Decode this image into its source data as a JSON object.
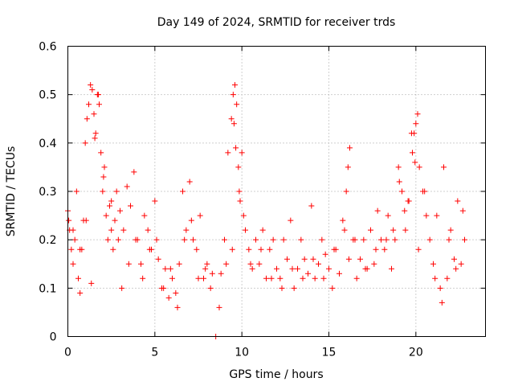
{
  "chart_data": {
    "type": "scatter",
    "title": "Day 149 of 2024, SRMTID for receiver trds",
    "xlabel": "GPS time / hours",
    "ylabel": "SRMTID / TECUs",
    "xlim": [
      0,
      24
    ],
    "ylim": [
      0,
      0.6
    ],
    "xticks": [
      0,
      5,
      10,
      15,
      20
    ],
    "xtick_labels": [
      "0",
      "5",
      "10",
      "15",
      "20"
    ],
    "yticks": [
      0,
      0.1,
      0.2,
      0.3,
      0.4,
      0.5,
      0.6
    ],
    "ytick_labels": [
      "0",
      "0.1",
      "0.2",
      "0.3",
      "0.4",
      "0.5",
      "0.6"
    ],
    "grid": true,
    "marker": "+",
    "color": "#ff0000",
    "series": [
      {
        "name": "SRMTID",
        "x": [
          0.0,
          0.1,
          0.2,
          0.3,
          0.4,
          0.5,
          0.6,
          0.7,
          0.8,
          0.9,
          1.0,
          1.1,
          1.2,
          1.3,
          1.4,
          1.5,
          1.6,
          1.7,
          1.8,
          1.9,
          2.0,
          2.1,
          2.2,
          2.3,
          2.4,
          2.5,
          2.6,
          2.7,
          2.8,
          2.9,
          3.0,
          3.2,
          3.4,
          3.6,
          3.8,
          4.0,
          4.2,
          4.4,
          4.6,
          4.8,
          5.0,
          5.2,
          5.4,
          5.6,
          5.8,
          6.0,
          6.2,
          6.4,
          6.6,
          6.8,
          7.0,
          7.2,
          7.4,
          7.6,
          7.8,
          8.0,
          8.2,
          8.5,
          8.8,
          9.0,
          9.2,
          9.4,
          9.5,
          9.6,
          9.7,
          9.8,
          9.9,
          10.0,
          10.2,
          10.4,
          10.6,
          10.8,
          11.0,
          11.2,
          11.4,
          11.6,
          11.8,
          12.0,
          12.2,
          12.4,
          12.6,
          12.8,
          13.0,
          13.2,
          13.4,
          13.6,
          13.8,
          14.0,
          14.2,
          14.4,
          14.6,
          14.8,
          15.0,
          15.2,
          15.4,
          15.6,
          15.8,
          16.0,
          16.1,
          16.2,
          16.4,
          16.6,
          16.8,
          17.0,
          17.2,
          17.4,
          17.6,
          17.8,
          18.0,
          18.2,
          18.4,
          18.6,
          18.8,
          19.0,
          19.2,
          19.4,
          19.6,
          19.8,
          19.9,
          20.0,
          20.1,
          20.2,
          20.4,
          20.6,
          20.8,
          21.0,
          21.2,
          21.4,
          21.6,
          21.8,
          22.0,
          22.2,
          22.4,
          22.6,
          22.8,
          0.05,
          0.3,
          0.7,
          1.05,
          1.35,
          1.55,
          1.75,
          2.05,
          2.5,
          3.1,
          3.5,
          3.9,
          4.3,
          4.7,
          5.1,
          5.5,
          5.9,
          6.3,
          6.7,
          7.1,
          7.5,
          7.9,
          8.3,
          8.7,
          9.1,
          9.45,
          9.55,
          9.65,
          9.85,
          10.1,
          10.5,
          11.1,
          11.7,
          12.3,
          12.9,
          13.5,
          14.1,
          14.7,
          15.3,
          15.9,
          16.15,
          16.5,
          17.1,
          17.7,
          18.3,
          18.7,
          19.05,
          19.35,
          19.55,
          19.75,
          19.95,
          20.15,
          20.5,
          21.1,
          21.5,
          21.9,
          22.3,
          22.7
        ],
        "y": [
          0.26,
          0.22,
          0.18,
          0.15,
          0.2,
          0.3,
          0.12,
          0.09,
          0.18,
          0.24,
          0.4,
          0.45,
          0.48,
          0.52,
          0.51,
          0.46,
          0.42,
          0.5,
          0.48,
          0.38,
          0.3,
          0.35,
          0.25,
          0.2,
          0.27,
          0.22,
          0.18,
          0.24,
          0.3,
          0.2,
          0.26,
          0.22,
          0.31,
          0.27,
          0.34,
          0.2,
          0.15,
          0.25,
          0.22,
          0.18,
          0.28,
          0.16,
          0.1,
          0.14,
          0.08,
          0.12,
          0.09,
          0.15,
          0.3,
          0.22,
          0.32,
          0.2,
          0.18,
          0.25,
          0.12,
          0.15,
          0.1,
          0.0,
          0.13,
          0.2,
          0.38,
          0.45,
          0.5,
          0.52,
          0.48,
          0.35,
          0.28,
          0.38,
          0.22,
          0.18,
          0.14,
          0.2,
          0.15,
          0.22,
          0.12,
          0.18,
          0.2,
          0.14,
          0.12,
          0.2,
          0.16,
          0.24,
          0.1,
          0.14,
          0.2,
          0.16,
          0.13,
          0.27,
          0.12,
          0.15,
          0.2,
          0.17,
          0.14,
          0.1,
          0.18,
          0.13,
          0.24,
          0.3,
          0.35,
          0.39,
          0.2,
          0.12,
          0.16,
          0.2,
          0.14,
          0.22,
          0.15,
          0.26,
          0.2,
          0.18,
          0.25,
          0.14,
          0.2,
          0.35,
          0.3,
          0.22,
          0.28,
          0.38,
          0.42,
          0.44,
          0.46,
          0.35,
          0.3,
          0.25,
          0.2,
          0.15,
          0.25,
          0.1,
          0.35,
          0.12,
          0.22,
          0.16,
          0.28,
          0.15,
          0.2,
          0.24,
          0.22,
          0.18,
          0.24,
          0.11,
          0.41,
          0.5,
          0.33,
          0.28,
          0.1,
          0.15,
          0.2,
          0.12,
          0.18,
          0.2,
          0.1,
          0.14,
          0.06,
          0.2,
          0.24,
          0.12,
          0.14,
          0.13,
          0.06,
          0.15,
          0.18,
          0.44,
          0.39,
          0.3,
          0.25,
          0.15,
          0.18,
          0.12,
          0.1,
          0.14,
          0.12,
          0.16,
          0.12,
          0.18,
          0.22,
          0.16,
          0.2,
          0.14,
          0.18,
          0.2,
          0.22,
          0.32,
          0.26,
          0.28,
          0.42,
          0.36,
          0.18,
          0.3,
          0.12,
          0.07,
          0.2,
          0.14,
          0.26
        ]
      }
    ]
  }
}
